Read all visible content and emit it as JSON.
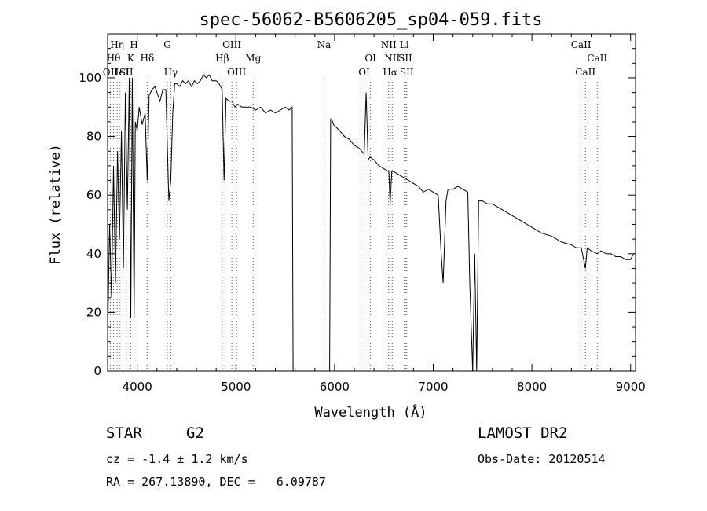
{
  "chart_data": {
    "type": "line",
    "title": "spec-56062-B5606205_sp04-059.fits",
    "xlabel": "Wavelength (Å)",
    "ylabel": "Flux (relative)",
    "xlim": [
      3700,
      9050
    ],
    "ylim": [
      0,
      115
    ],
    "xticks": [
      4000,
      5000,
      6000,
      7000,
      8000,
      9000
    ],
    "yticks": [
      0,
      20,
      40,
      60,
      80,
      100
    ],
    "grid": false,
    "series": [
      {
        "x": [
          3700,
          3720,
          3740,
          3760,
          3780,
          3800,
          3820,
          3840,
          3860,
          3880,
          3900,
          3920,
          3935,
          3950,
          3968,
          3980,
          4000,
          4020,
          4050,
          4080,
          4101,
          4120,
          4150,
          4180,
          4200,
          4230,
          4260,
          4290,
          4320,
          4340,
          4360,
          4380,
          4400,
          4430,
          4460,
          4490,
          4520,
          4550,
          4580,
          4610,
          4640,
          4670,
          4700,
          4730,
          4760,
          4800,
          4830,
          4861,
          4880,
          4900,
          4930,
          4960,
          4990,
          5020,
          5060,
          5100,
          5150,
          5200,
          5250,
          5300,
          5350,
          5400,
          5450,
          5500,
          5540,
          5570,
          5580,
          5950,
          5960,
          5970,
          5990,
          6050,
          6100,
          6150,
          6200,
          6250,
          6300,
          6320,
          6340,
          6360,
          6400,
          6450,
          6500,
          6550,
          6563,
          6580,
          6600,
          6650,
          6700,
          6750,
          6800,
          6850,
          6900,
          6950,
          7000,
          7050,
          7080,
          7100,
          7130,
          7150,
          7200,
          7250,
          7300,
          7350,
          7370,
          7400,
          7420,
          7440,
          7460,
          7500,
          7550,
          7600,
          7700,
          7800,
          7900,
          8000,
          8100,
          8200,
          8300,
          8400,
          8450,
          8500,
          8542,
          8560,
          8600,
          8662,
          8700,
          8750,
          8800,
          8850,
          8900,
          8950,
          9000,
          9030
        ],
        "y": [
          10,
          50,
          25,
          70,
          30,
          75,
          45,
          82,
          35,
          95,
          55,
          100,
          18,
          100,
          18,
          85,
          82,
          90,
          84,
          88,
          65,
          94,
          96,
          97,
          95,
          92,
          96,
          96,
          58,
          65,
          88,
          98,
          98,
          97,
          99,
          98,
          99,
          97,
          99,
          98,
          99,
          101,
          100,
          101,
          99,
          99,
          98,
          96,
          65,
          93,
          92,
          92,
          90,
          91,
          90,
          90,
          90,
          89,
          90,
          88,
          89,
          88,
          89,
          90,
          89,
          90,
          0,
          0,
          86,
          86,
          84,
          82,
          80,
          79,
          77,
          76,
          74,
          95,
          72,
          73,
          72,
          70,
          69,
          68,
          57,
          68,
          68,
          67,
          66,
          65,
          64,
          63,
          61,
          62,
          61,
          60,
          40,
          30,
          58,
          62,
          62,
          63,
          62,
          61,
          30,
          0,
          40,
          0,
          58,
          58,
          57,
          57,
          55,
          53,
          51,
          49,
          47,
          46,
          44,
          43,
          42,
          42,
          35,
          42,
          41,
          40,
          41,
          40,
          40,
          39,
          39,
          38,
          38,
          40
        ]
      }
    ],
    "lines": [
      {
        "wl": 3727,
        "row": 3,
        "label": "OII"
      },
      {
        "wl": 3760,
        "row": 2,
        "label": "Hθ"
      },
      {
        "wl": 3797,
        "row": 1,
        "label": "Hη"
      },
      {
        "wl": 3820,
        "row": 3,
        "label": "HeI"
      },
      {
        "wl": 3889,
        "row": 3,
        "label": "SII"
      },
      {
        "wl": 3934,
        "row": 2,
        "label": "K"
      },
      {
        "wl": 3968,
        "row": 1,
        "label": "H"
      },
      {
        "wl": 4101,
        "row": 2,
        "label": "Hδ"
      },
      {
        "wl": 4305,
        "row": 1,
        "label": "G"
      },
      {
        "wl": 4340,
        "row": 3,
        "label": "Hγ"
      },
      {
        "wl": 4861,
        "row": 2,
        "label": "Hβ"
      },
      {
        "wl": 4959,
        "row": 1,
        "label": "OIII"
      },
      {
        "wl": 5007,
        "row": 3,
        "label": "OIII"
      },
      {
        "wl": 5175,
        "row": 2,
        "label": "Mg"
      },
      {
        "wl": 5893,
        "row": 1,
        "label": "Na"
      },
      {
        "wl": 6300,
        "row": 3,
        "label": "OI"
      },
      {
        "wl": 6364,
        "row": 2,
        "label": "OI"
      },
      {
        "wl": 6548,
        "row": 1,
        "label": "NII"
      },
      {
        "wl": 6563,
        "row": 3,
        "label": "Hα"
      },
      {
        "wl": 6584,
        "row": 2,
        "label": "NII"
      },
      {
        "wl": 6707,
        "row": 1,
        "label": "Li"
      },
      {
        "wl": 6717,
        "row": 2,
        "label": "SII"
      },
      {
        "wl": 6731,
        "row": 3,
        "label": "SII"
      },
      {
        "wl": 8498,
        "row": 1,
        "label": "CaII"
      },
      {
        "wl": 8542,
        "row": 3,
        "label": "CaII"
      },
      {
        "wl": 8662,
        "row": 2,
        "label": "CaII"
      }
    ]
  },
  "info": {
    "class_label": "STAR",
    "subclass_label": "G2",
    "survey_label": "LAMOST DR2",
    "cz_line": "cz = -1.4 ± 1.2 km/s",
    "obs_date_line": "Obs-Date: 20120514",
    "coords_line": "RA = 267.13890, DEC =   6.09787"
  }
}
